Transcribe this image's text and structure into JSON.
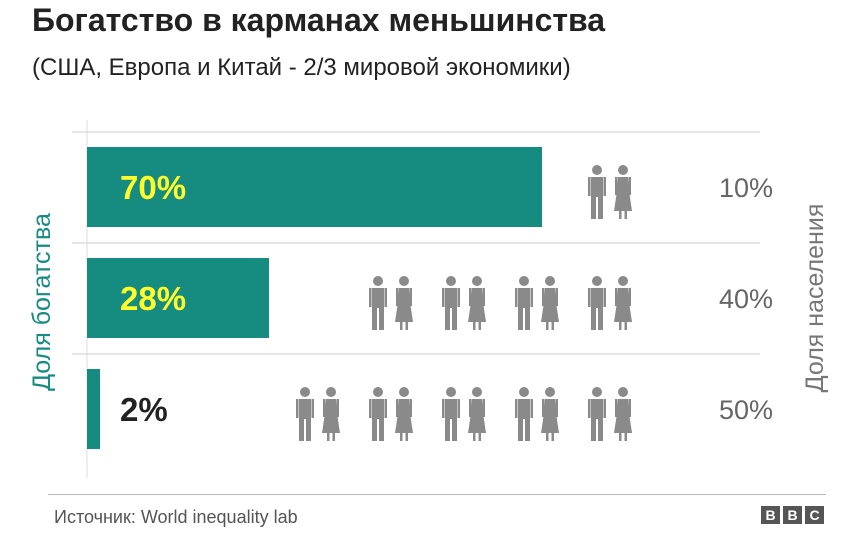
{
  "title": "Богатство в карманах меньшинства",
  "subtitle": "(США, Европа и Китай - 2/3 мировой экономики)",
  "source": "Источник: World inequality lab",
  "brand": [
    "B",
    "B",
    "C"
  ],
  "colors": {
    "wealth": "#168c80",
    "people": "#8a8a8a",
    "label_highlight": "#ffff2a",
    "text": "#222222",
    "muted": "#666666"
  },
  "chart_data": {
    "type": "bar",
    "orientation": "horizontal",
    "ylabel_left": "Доля богатства",
    "ylabel_right": "Доля населения",
    "xlim": [
      0,
      100
    ],
    "grid": true,
    "rows": [
      {
        "wealth": 70,
        "wealth_label": "70%",
        "population": 10,
        "population_label": "10%",
        "pairs": 1
      },
      {
        "wealth": 28,
        "wealth_label": "28%",
        "population": 40,
        "population_label": "40%",
        "pairs": 4
      },
      {
        "wealth": 2,
        "wealth_label": "2%",
        "population": 50,
        "population_label": "50%",
        "pairs": 5
      }
    ]
  }
}
